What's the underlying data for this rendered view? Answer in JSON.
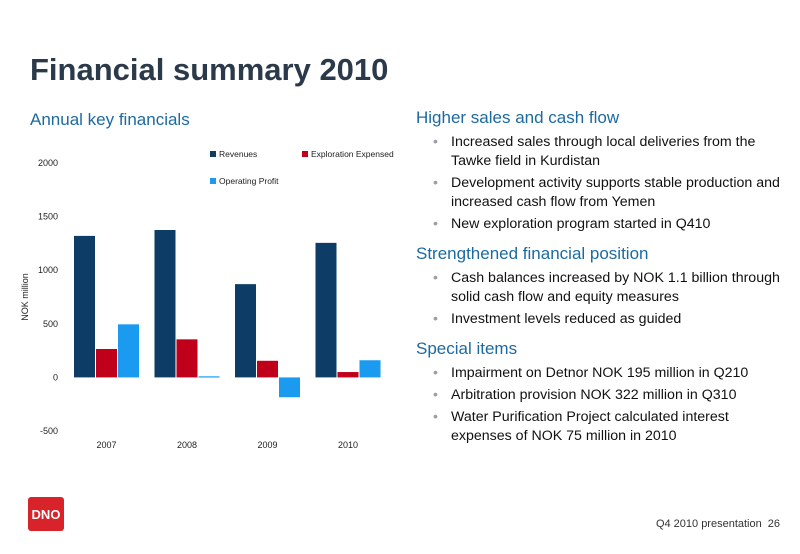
{
  "slide": {
    "title": "Financial summary 2010",
    "left_subtitle": "Annual key financials"
  },
  "sections": [
    {
      "heading": "Higher sales and cash flow",
      "bullets": [
        "Increased sales through local deliveries from the Tawke field in Kurdistan",
        "Development activity supports stable production and increased cash flow from Yemen",
        "New exploration program started in Q410"
      ]
    },
    {
      "heading": "Strengthened financial position",
      "bullets": [
        "Cash balances increased by NOK 1.1 billion through solid cash flow and equity measures",
        "Investment levels reduced as guided"
      ]
    },
    {
      "heading": "Special items",
      "bullets": [
        "Impairment on Detnor NOK 195 million in Q210",
        "Arbitration provision NOK 322 million in Q310",
        "Water Purification Project calculated interest expenses of NOK 75 million in 2010"
      ]
    }
  ],
  "chart_data": {
    "type": "bar",
    "categories": [
      "2007",
      "2008",
      "2009",
      "2010"
    ],
    "series": [
      {
        "name": "Revenues",
        "color": "#0d3d66",
        "values": [
          1320,
          1375,
          870,
          1255
        ]
      },
      {
        "name": "Exploration Expensed",
        "color": "#c0001a",
        "values": [
          265,
          355,
          155,
          50
        ]
      },
      {
        "name": "Operating Profit",
        "color": "#1a9bef",
        "values": [
          495,
          10,
          -185,
          160
        ]
      }
    ],
    "ylabel": "NOK million",
    "ylim": [
      -500,
      2000
    ],
    "yticks": [
      -500,
      0,
      500,
      1000,
      1500,
      2000
    ],
    "legend": "top-right",
    "grid": false
  },
  "footer": {
    "text": "Q4 2010 presentation",
    "page": "26"
  },
  "logo": {
    "text": "DNO",
    "color": "#d8232a"
  }
}
